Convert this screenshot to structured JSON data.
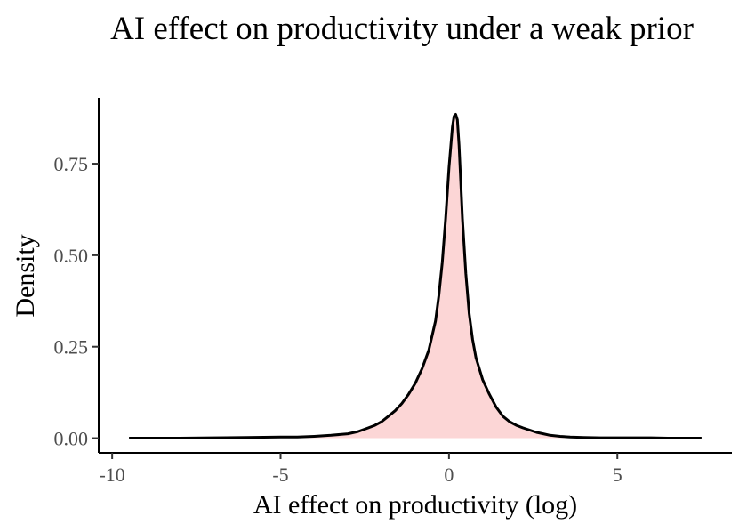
{
  "chart_data": {
    "type": "area",
    "title": "AI effect on productivity under a weak prior",
    "xlabel": "AI effect on productivity (log)",
    "ylabel": "Density",
    "xlim": [
      -10.4,
      8.4
    ],
    "ylim": [
      -0.04,
      0.93
    ],
    "x_ticks": [
      {
        "value": -10,
        "label": "-10"
      },
      {
        "value": -5,
        "label": "-5"
      },
      {
        "value": 0,
        "label": "0"
      },
      {
        "value": 5,
        "label": "5"
      }
    ],
    "y_ticks": [
      {
        "value": 0,
        "label": "0.00"
      },
      {
        "value": 0.25,
        "label": "0.25"
      },
      {
        "value": 0.5,
        "label": "0.50"
      },
      {
        "value": 0.75,
        "label": "0.75"
      }
    ],
    "grid": false,
    "legend": "none",
    "fill_color": "#fcd6d6",
    "line_color": "#000000",
    "series": [
      {
        "x": [
          -9.5,
          -8.0,
          -7.0,
          -6.0,
          -5.0,
          -4.5,
          -4.0,
          -3.5,
          -3.0,
          -2.7,
          -2.4,
          -2.2,
          -2.0,
          -1.8,
          -1.6,
          -1.4,
          -1.2,
          -1.0,
          -0.8,
          -0.6,
          -0.4,
          -0.3,
          -0.2,
          -0.1,
          0.0,
          0.1,
          0.15,
          0.2,
          0.25,
          0.3,
          0.4,
          0.5,
          0.6,
          0.7,
          0.8,
          1.0,
          1.2,
          1.4,
          1.6,
          1.8,
          2.0,
          2.2,
          2.4,
          2.6,
          2.8,
          3.0,
          3.3,
          3.6,
          4.0,
          4.5,
          5.0,
          5.5,
          6.0,
          6.5,
          7.0,
          7.5
        ],
        "y": [
          0.0,
          0.0,
          0.001,
          0.002,
          0.003,
          0.003,
          0.005,
          0.008,
          0.012,
          0.018,
          0.028,
          0.035,
          0.045,
          0.06,
          0.075,
          0.095,
          0.12,
          0.15,
          0.19,
          0.24,
          0.32,
          0.39,
          0.48,
          0.6,
          0.74,
          0.85,
          0.88,
          0.885,
          0.87,
          0.8,
          0.6,
          0.45,
          0.34,
          0.27,
          0.22,
          0.16,
          0.12,
          0.085,
          0.06,
          0.045,
          0.035,
          0.028,
          0.022,
          0.016,
          0.012,
          0.008,
          0.005,
          0.003,
          0.002,
          0.001,
          0.001,
          0.001,
          0.001,
          0.0,
          0.0,
          0.0
        ]
      }
    ]
  }
}
